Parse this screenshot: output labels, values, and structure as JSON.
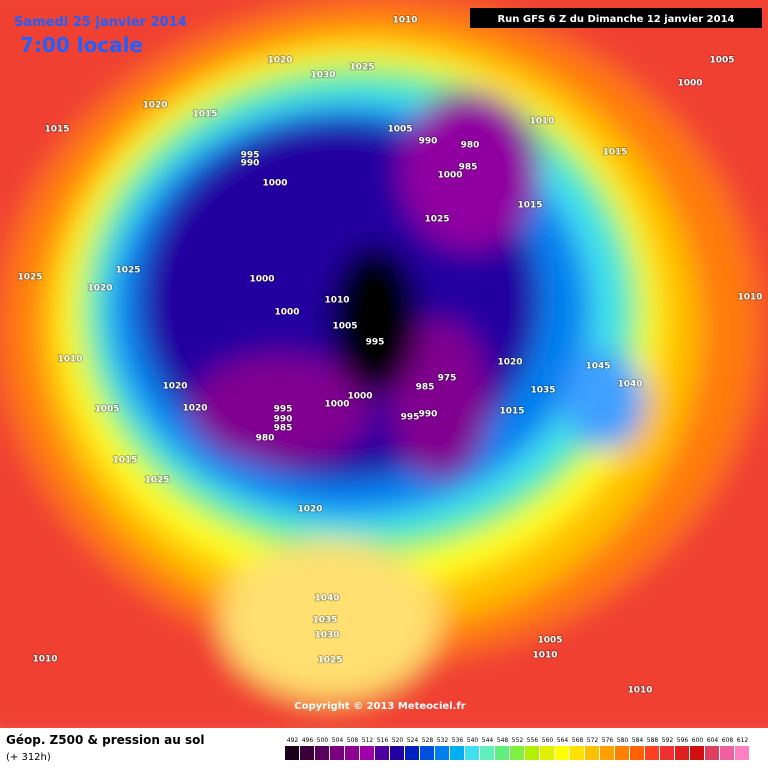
{
  "header": {
    "date": "Samedi 25 janvier 2014",
    "time": "7:00 locale",
    "run": "Run GFS 6 Z du Dimanche 12 janvier 2014"
  },
  "isobar_labels": [
    "1010",
    "1020",
    "1030",
    "1025",
    "1005",
    "1000",
    "1020",
    "1015",
    "1015",
    "1005",
    "990",
    "980",
    "1010",
    "995",
    "990",
    "1000",
    "1000",
    "985",
    "1015",
    "1015",
    "1025",
    "1025",
    "1020",
    "1025",
    "1000",
    "1010",
    "1000",
    "1005",
    "995",
    "1010",
    "1010",
    "1020",
    "975",
    "985",
    "1045",
    "1040",
    "1035",
    "1020",
    "1000",
    "1000",
    "995",
    "990",
    "985",
    "980",
    "1020",
    "1005",
    "990",
    "995",
    "1015",
    "1015",
    "1025",
    "1020",
    "1040",
    "1035",
    "1030",
    "1025",
    "1005",
    "1010",
    "1010",
    "1010"
  ],
  "footer": {
    "copyright": "Copyright © 2013 Meteociel.fr",
    "title": "Géop. Z500 & pression au sol",
    "lead": "(+ 312h)"
  },
  "scale": {
    "levels": [
      492,
      496,
      500,
      504,
      508,
      512,
      516,
      520,
      524,
      528,
      532,
      536,
      540,
      544,
      548,
      552,
      556,
      560,
      564,
      568,
      572,
      576,
      580,
      584,
      588,
      592,
      596,
      600,
      604,
      608,
      612
    ],
    "colors": [
      "#1a001a",
      "#3a003a",
      "#5a0060",
      "#7a0080",
      "#900090",
      "#a000a8",
      "#5000a0",
      "#2000a0",
      "#0020c0",
      "#0050e0",
      "#0080f0",
      "#00b0f0",
      "#40e0f0",
      "#60f0c0",
      "#60f080",
      "#80f040",
      "#b0f000",
      "#e0f000",
      "#ffff00",
      "#ffe000",
      "#ffc000",
      "#ffa000",
      "#ff8000",
      "#ff6000",
      "#ff4020",
      "#f03030",
      "#e02020",
      "#d01010",
      "#e04060",
      "#f060a0",
      "#ff80c0"
    ]
  }
}
